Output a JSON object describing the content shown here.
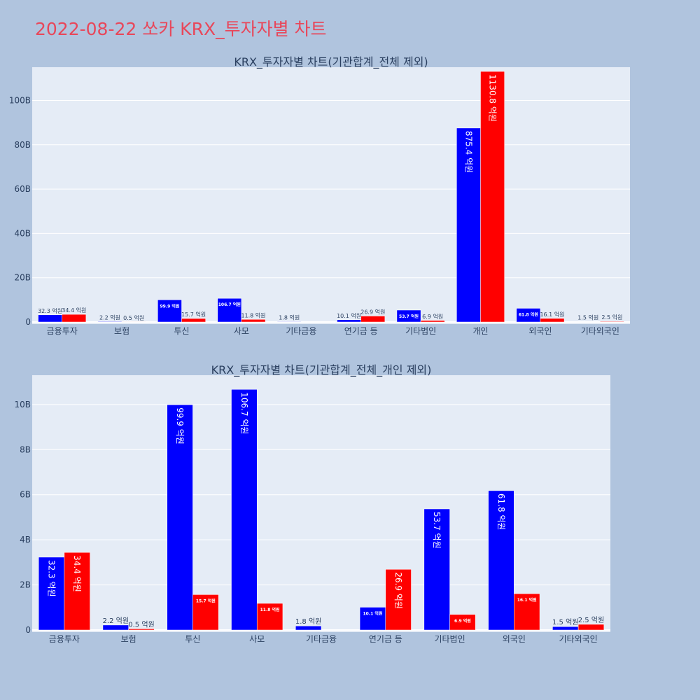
{
  "page": {
    "title": "2022-08-22 쏘카 KRX_투자자별 차트"
  },
  "colors": {
    "background": "#b0c4de",
    "plot_bg": "#e5ecf6",
    "series_a": "#0000ff",
    "series_b": "#ff0000",
    "title": "#e8475a",
    "text": "#2a3f5f"
  },
  "chart_data": [
    {
      "type": "bar",
      "title": "KRX_투자자별 차트(기관합계_전체 제외)",
      "xlabel": "",
      "ylabel": "",
      "categories": [
        "금융투자",
        "보험",
        "투신",
        "사모",
        "기타금융",
        "연기금 등",
        "기타법인",
        "개인",
        "외국인",
        "기타외국인"
      ],
      "ylim": [
        0,
        115000000000
      ],
      "yticks": [
        0,
        20000000000,
        40000000000,
        60000000000,
        80000000000,
        100000000000
      ],
      "yticklabels": [
        "0",
        "20B",
        "40B",
        "60B",
        "80B",
        "100B"
      ],
      "grid": true,
      "barmode": "group",
      "series": [
        {
          "values": [
            3230000000,
            220000000,
            9990000000,
            10670000000,
            180000000,
            1010000000,
            5370000000,
            87540000000,
            6180000000,
            150000000
          ],
          "labels": [
            "32.3 억원",
            "2.2 억원",
            "99.9 억원",
            "106.7 억원",
            "1.8 억원",
            "10.1 억원",
            "53.7 억원",
            "875.4 억원",
            "61.8 억원",
            "1.5 억원"
          ]
        },
        {
          "values": [
            3440000000,
            50000000,
            1570000000,
            1180000000,
            0,
            2690000000,
            690000000,
            113080000000,
            1610000000,
            250000000
          ],
          "labels": [
            "34.4 억원",
            "0.5 억원",
            "15.7 억원",
            "11.8 억원",
            "",
            "26.9 억원",
            "6.9 억원",
            "1130.8 억원",
            "16.1 억원",
            "2.5 억원"
          ]
        }
      ]
    },
    {
      "type": "bar",
      "title": "KRX_투자자별 차트(기관합계_전체_개인 제외)",
      "xlabel": "",
      "ylabel": "",
      "categories": [
        "금융투자",
        "보험",
        "투신",
        "사모",
        "기타금융",
        "연기금 등",
        "기타법인",
        "외국인",
        "기타외국인"
      ],
      "ylim": [
        0,
        11300000000
      ],
      "yticks": [
        0,
        2000000000,
        4000000000,
        6000000000,
        8000000000,
        10000000000
      ],
      "yticklabels": [
        "0",
        "2B",
        "4B",
        "6B",
        "8B",
        "10B"
      ],
      "grid": true,
      "barmode": "group",
      "series": [
        {
          "values": [
            3230000000,
            220000000,
            9990000000,
            10670000000,
            180000000,
            1010000000,
            5370000000,
            6180000000,
            150000000
          ],
          "labels": [
            "32.3 억원",
            "2.2 억원",
            "99.9 억원",
            "106.7 억원",
            "1.8 억원",
            "10.1 억원",
            "53.7 억원",
            "61.8 억원",
            "1.5 억원"
          ]
        },
        {
          "values": [
            3440000000,
            50000000,
            1570000000,
            1180000000,
            0,
            2690000000,
            690000000,
            1610000000,
            250000000
          ],
          "labels": [
            "34.4 억원",
            "0.5 억원",
            "15.7 억원",
            "11.8 억원",
            "",
            "26.9 억원",
            "6.9 억원",
            "16.1 억원",
            "2.5 억원"
          ]
        }
      ]
    }
  ]
}
